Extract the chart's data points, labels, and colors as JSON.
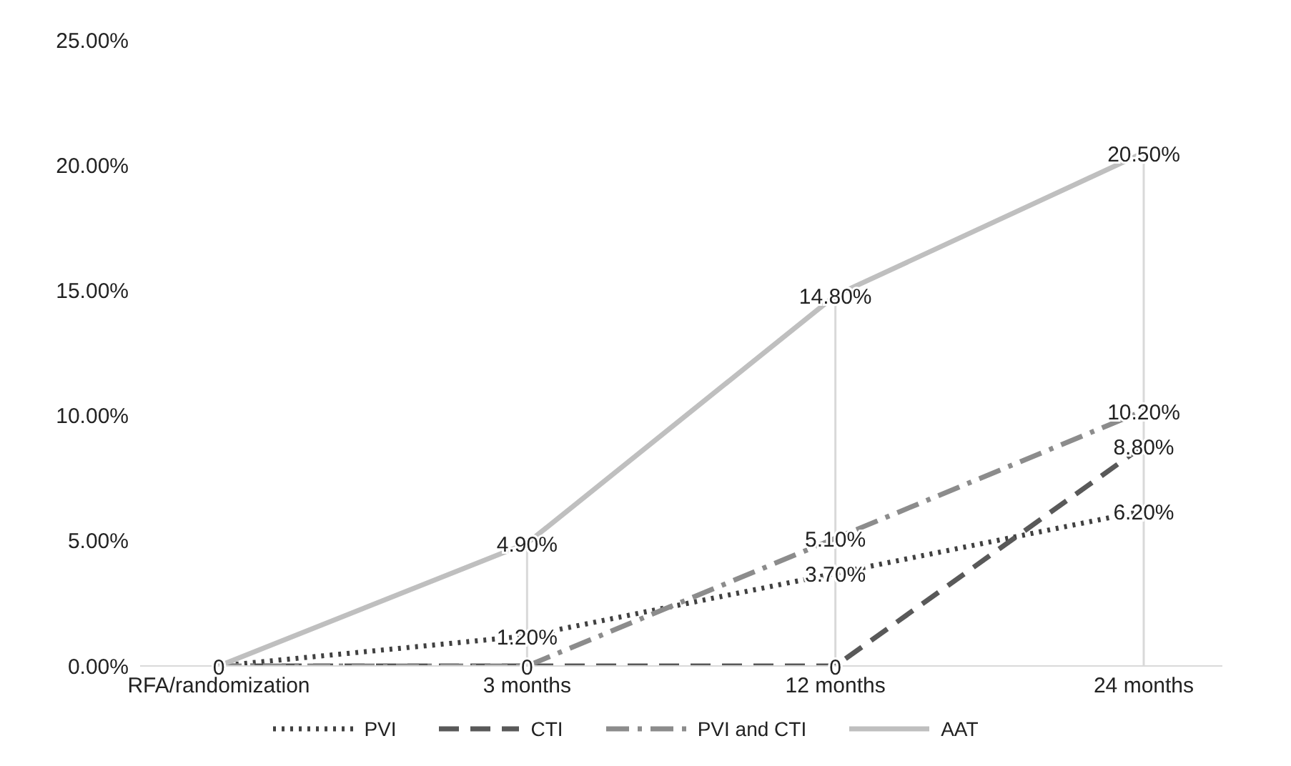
{
  "chart_data": {
    "type": "line",
    "categories": [
      "RFA/randomization",
      "3 months",
      "12 months",
      "24 months"
    ],
    "series": [
      {
        "name": "PVI",
        "color": "#404040",
        "line_style": "dotted",
        "values": [
          0,
          1.2,
          3.7,
          6.2
        ],
        "value_labels": [
          "0",
          "1.20%",
          "3.70%",
          "6.20%"
        ]
      },
      {
        "name": "CTI",
        "color": "#595959",
        "line_style": "dashed",
        "values": [
          0,
          0,
          0,
          8.8
        ],
        "value_labels": [
          null,
          "0",
          "0",
          "8.80%"
        ]
      },
      {
        "name": "PVI and CTI",
        "color": "#8c8c8c",
        "line_style": "dashdot",
        "values": [
          0,
          0,
          5.1,
          10.2
        ],
        "value_labels": [
          null,
          null,
          "5.10%",
          "10.20%"
        ]
      },
      {
        "name": "AAT",
        "color": "#bfbfbf",
        "line_style": "solid",
        "values": [
          0,
          4.9,
          14.8,
          20.5
        ],
        "value_labels": [
          null,
          "4.90%",
          "14.80%",
          "20.50%"
        ]
      }
    ],
    "ylim": [
      0,
      25
    ],
    "yticks": [
      {
        "value": 0,
        "label": "0.00%"
      },
      {
        "value": 5,
        "label": "5.00%"
      },
      {
        "value": 10,
        "label": "10.00%"
      },
      {
        "value": 15,
        "label": "15.00%"
      },
      {
        "value": 20,
        "label": "20.00%"
      },
      {
        "value": 25,
        "label": "25.00%"
      }
    ],
    "ref_lines": [
      {
        "axis": "x",
        "value": "3 months",
        "color": "#d9d9d9"
      },
      {
        "axis": "x",
        "value": "12 months",
        "color": "#d9d9d9"
      },
      {
        "axis": "x",
        "value": "24 months",
        "color": "#d9d9d9"
      }
    ],
    "grid": false,
    "marker": "none",
    "legend": "bottom"
  }
}
